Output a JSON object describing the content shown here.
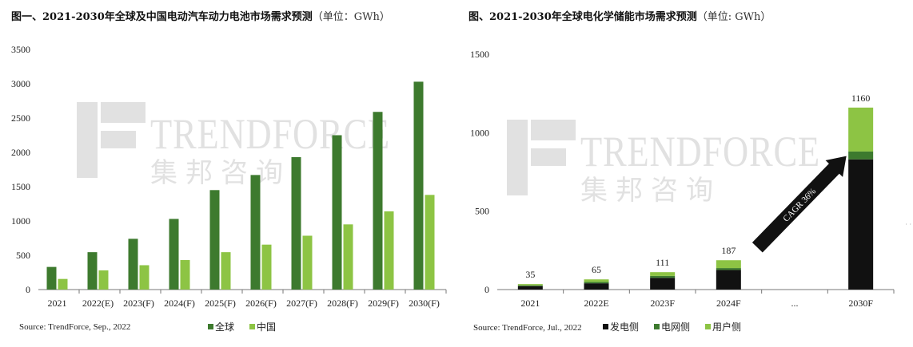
{
  "chart_data": [
    {
      "type": "bar",
      "title": "图一、2021-2030年全球及中国电动汽车动力电池市场需求预测",
      "unit": "（单位：GWh）",
      "categories": [
        "2021",
        "2022(E)",
        "2023(F)",
        "2024(F)",
        "2025(F)",
        "2026(F)",
        "2027(F)",
        "2028(F)",
        "2029(F)",
        "2030(F)"
      ],
      "series": [
        {
          "name": "全球",
          "color": "#3d7a2e",
          "values": [
            330,
            545,
            740,
            1030,
            1450,
            1670,
            1930,
            2250,
            2590,
            3030
          ]
        },
        {
          "name": "中国",
          "color": "#8dc444",
          "values": [
            155,
            280,
            355,
            430,
            545,
            655,
            785,
            950,
            1140,
            1380
          ]
        }
      ],
      "ylim": [
        0,
        3500
      ],
      "yticks": [
        0,
        500,
        1000,
        1500,
        2000,
        2500,
        3000,
        3500
      ],
      "source": "Source: TrendForce, Sep., 2022",
      "legend": "bottom"
    },
    {
      "type": "stacked-bar",
      "title": "图、2021-2030年全球电化学储能市场需求预测",
      "unit": "（单位: GWh）",
      "categories": [
        "2021",
        "2022E",
        "2023F",
        "2024F",
        "...",
        "2030F"
      ],
      "series": [
        {
          "name": "发电侧",
          "color": "#111111",
          "values": [
            22,
            40,
            75,
            125,
            null,
            830
          ]
        },
        {
          "name": "电网侧",
          "color": "#3d7a2e",
          "values": [
            5,
            9,
            12,
            12,
            null,
            50
          ]
        },
        {
          "name": "用户侧",
          "color": "#8dc444",
          "values": [
            8,
            16,
            24,
            50,
            null,
            280
          ]
        }
      ],
      "totals": [
        "35",
        "65",
        "111",
        "187",
        "",
        "1160"
      ],
      "ylim": [
        0,
        1500
      ],
      "yticks": [
        0,
        500,
        1000,
        1500
      ],
      "annotation": "CAGR 36%",
      "source": "Source: TrendForce, Jul., 2022",
      "legend": "bottom"
    }
  ],
  "watermark": {
    "brand": "TRENDFORCE",
    "cn": "集邦咨询",
    "color": "#bdbdbd"
  },
  "side_marks": "· ·"
}
